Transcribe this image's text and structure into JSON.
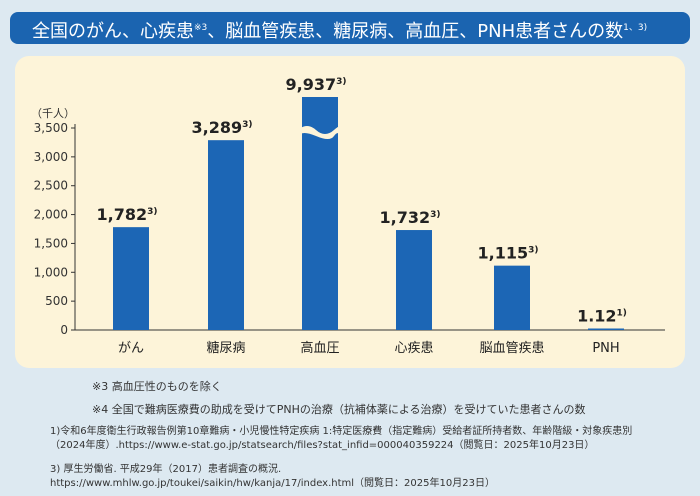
{
  "title": {
    "text": "全国のがん、心疾患",
    "sup1": "※3",
    "text2": "、脳血管疾患、糖尿病、高血圧、PNH患者さんの数",
    "sup2": "1、3)"
  },
  "chart_data": {
    "type": "bar",
    "title": "全国のがん、心疾患※3、脳血管疾患、糖尿病、高血圧、PNH患者さんの数",
    "ylabel": "（千人）",
    "ylim": [
      0,
      3500
    ],
    "yticks": [
      "0",
      "500",
      "1,000",
      "1,500",
      "2,000",
      "2,500",
      "3,000",
      "3,500"
    ],
    "categories": [
      "がん",
      "糖尿病",
      "高血圧",
      "心疾患",
      "脳血管疾患",
      "PNH"
    ],
    "values": [
      1782,
      3289,
      9937,
      1732,
      1115,
      1.12
    ],
    "labels": [
      "1,782",
      "3,289",
      "9,937",
      "1,732",
      "1,115",
      "1.12"
    ],
    "label_refs": [
      "3)",
      "3)",
      "3)",
      "3)",
      "3)",
      "1)"
    ],
    "axis_break": "高血圧",
    "bar_color": "#1c66b5"
  },
  "notes": [
    "※3 高血圧性のものを除く",
    "※4 全国で難病医療費の助成を受けてPNHの治療（抗補体薬による治療）を受けていた患者さんの数"
  ],
  "refs": [
    "1)令和6年度衛生行政報告例第10章難病・小児慢性特定疾病 1:特定医療費（指定難病）受給者証所持者数、年齢階級・対象疾患別",
    "（2024年度）.https://www.e-stat.go.jp/statsearch/files?stat_infid=000040359224（閲覧日：2025年10月23日）",
    "3) 厚生労働省. 平成29年（2017）患者調査の概況.",
    "https://www.mhlw.go.jp/toukei/saikin/hw/kanja/17/index.html（閲覧日：2025年10月23日）"
  ]
}
